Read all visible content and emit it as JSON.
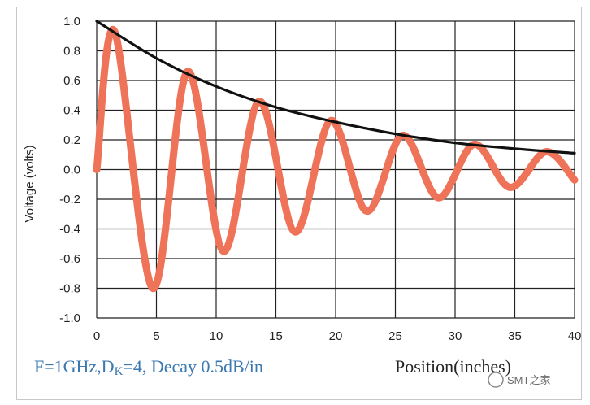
{
  "chart_data": {
    "type": "line",
    "title": "",
    "xlabel": "Position(inches)",
    "ylabel": "Voltage (volts)",
    "xlim": [
      0,
      40
    ],
    "ylim": [
      -1.0,
      1.0
    ],
    "x_ticks": [
      "0",
      "5",
      "10",
      "15",
      "20",
      "25",
      "30",
      "35",
      "40"
    ],
    "y_ticks": [
      "1.0",
      "0.8",
      "0.6",
      "0.4",
      "0.2",
      "0.0",
      "-0.2",
      "-0.4",
      "-0.6",
      "-0.8",
      "-1.0"
    ],
    "grid": true,
    "annotation": "F=1GHz,DK=4,  Decay 0.5dB/in",
    "annotation_parts": {
      "prefix": "F=1GHz,D",
      "sub": "K",
      "suffix": "=4,  Decay 0.5dB/in"
    },
    "series": [
      {
        "color": "#ee7358",
        "x": [
          0,
          1.5,
          4.7,
          7.6,
          10.6,
          13.6,
          16.6,
          19.6,
          22.6,
          25.6,
          28.6,
          31.6,
          34.6,
          37.6,
          40
        ],
        "y": [
          0.0,
          0.93,
          -0.8,
          0.66,
          -0.55,
          0.46,
          -0.42,
          0.33,
          -0.28,
          0.23,
          -0.19,
          0.17,
          -0.12,
          0.12,
          -0.07
        ]
      },
      {
        "color": "#111111",
        "x": [
          0,
          5,
          10,
          15,
          20,
          25,
          30,
          35,
          40
        ],
        "y": [
          1.0,
          0.75,
          0.56,
          0.42,
          0.32,
          0.24,
          0.18,
          0.14,
          0.11
        ]
      }
    ]
  },
  "watermark": "SMT之家",
  "colors": {
    "annotation": "#3a78b0",
    "xlabel": "#222222",
    "grid": "#222222"
  }
}
